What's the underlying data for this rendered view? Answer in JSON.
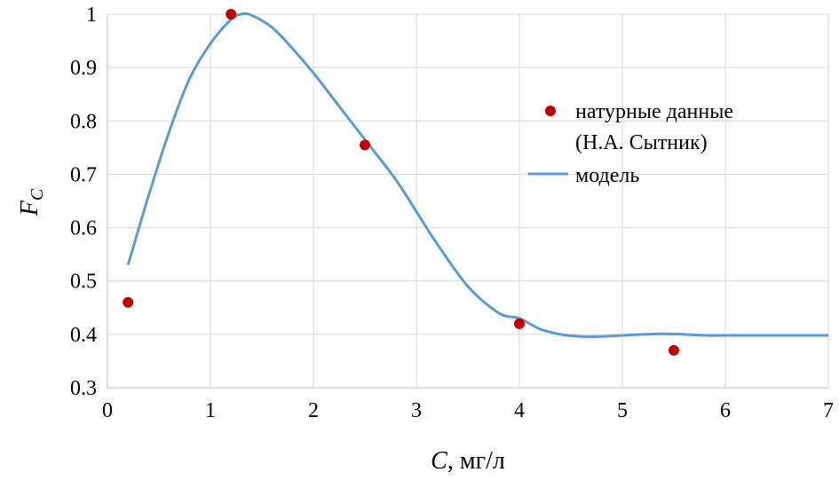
{
  "chart_data": {
    "type": "scatter",
    "title": "",
    "xlabel_var": "C",
    "xlabel_unit": ", мг/л",
    "ylabel_var": "F",
    "ylabel_sub": "C",
    "xlim": [
      0,
      7
    ],
    "ylim": [
      0.3,
      1.0
    ],
    "x_ticks": [
      "0",
      "1",
      "2",
      "3",
      "4",
      "5",
      "6",
      "7"
    ],
    "y_ticks": [
      "0.3",
      "0.4",
      "0.5",
      "0.6",
      "0.7",
      "0.8",
      "0.9",
      "1"
    ],
    "grid": true,
    "legend_position": "right",
    "series": [
      {
        "name_line1": "натурные данные",
        "name_line2": "(Н.А. Сытник)",
        "kind": "points",
        "color": "#c00000",
        "x": [
          0.2,
          1.2,
          2.5,
          4.0,
          5.5
        ],
        "y": [
          0.46,
          1.0,
          0.755,
          0.42,
          0.37
        ]
      },
      {
        "name": "модель",
        "kind": "line",
        "color": "#5b9bd5",
        "x": [
          0.2,
          0.4,
          0.6,
          0.8,
          1.0,
          1.2,
          1.3,
          1.4,
          1.6,
          1.8,
          2.0,
          2.2,
          2.5,
          2.8,
          3.0,
          3.2,
          3.5,
          3.8,
          4.0,
          4.2,
          4.4,
          4.6,
          4.8,
          5.0,
          5.2,
          5.4,
          5.6,
          5.8,
          6.0,
          6.5,
          7.0
        ],
        "y": [
          0.53,
          0.66,
          0.78,
          0.88,
          0.945,
          0.99,
          1.0,
          0.998,
          0.975,
          0.935,
          0.89,
          0.84,
          0.765,
          0.69,
          0.63,
          0.57,
          0.49,
          0.44,
          0.43,
          0.41,
          0.4,
          0.396,
          0.396,
          0.398,
          0.4,
          0.401,
          0.4,
          0.398,
          0.398,
          0.398,
          0.398
        ]
      }
    ]
  }
}
